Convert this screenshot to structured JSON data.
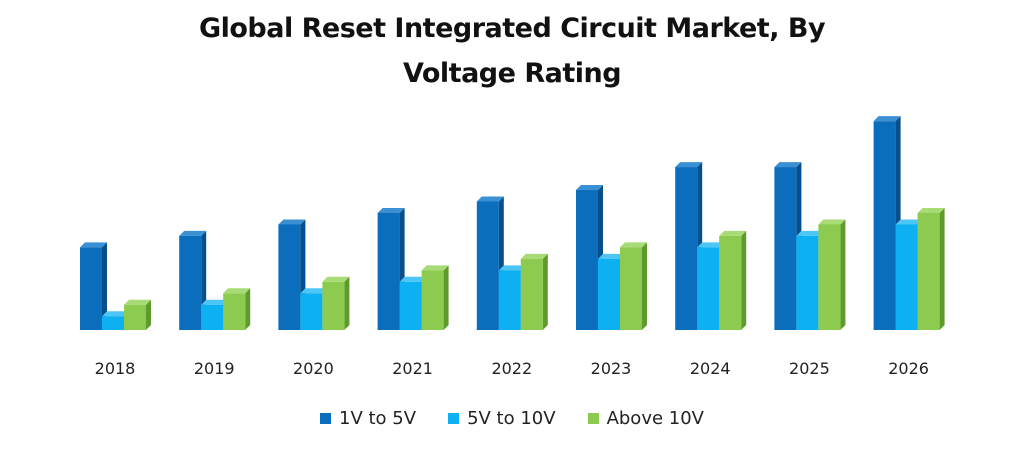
{
  "chart_data": {
    "type": "bar",
    "title_line1": "Global Reset Integrated Circuit Market, By",
    "title_line2": "Voltage Rating",
    "xlabel": "",
    "ylabel": "",
    "grid": false,
    "legend_position": "bottom",
    "ylim": [
      0,
      19
    ],
    "categories": [
      "2018",
      "2019",
      "2020",
      "2021",
      "2022",
      "2023",
      "2024",
      "2025",
      "2026"
    ],
    "series": [
      {
        "name": "1V to 5V",
        "color": "#0a6ebd",
        "side": "#074f8c",
        "top": "#3b8fd3",
        "values": [
          7.2,
          8.2,
          9.2,
          10.2,
          11.2,
          12.2,
          14.2,
          14.2,
          18.2
        ]
      },
      {
        "name": "5V to 10V",
        "color": "#0db1f1",
        "side": "#0a86b6",
        "top": "#4cc6f5",
        "values": [
          1.2,
          2.2,
          3.2,
          4.2,
          5.2,
          6.2,
          7.2,
          8.2,
          9.2
        ]
      },
      {
        "name": "Above 10V",
        "color": "#8ccb4f",
        "side": "#5f9a2c",
        "top": "#a8db75",
        "values": [
          2.2,
          3.2,
          4.2,
          5.2,
          6.2,
          7.2,
          8.2,
          9.2,
          10.2
        ]
      }
    ]
  }
}
